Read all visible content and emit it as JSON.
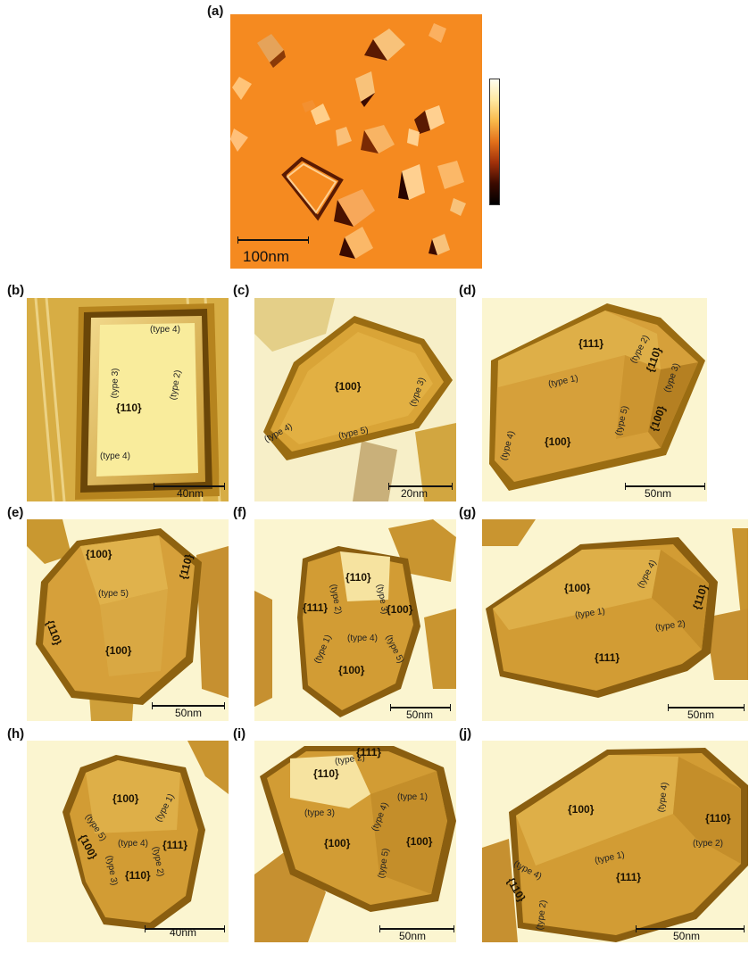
{
  "figure": {
    "colors": {
      "afm_background": "#f58a20",
      "crystal_gold": "#d9a437",
      "crystal_dark": "#8b5f12",
      "substrate_light": "#fbf5d0"
    },
    "panels": [
      {
        "id": "a",
        "letter": "(a)",
        "scale_label": "100nm",
        "labels": [],
        "facets": []
      },
      {
        "id": "b",
        "letter": "(b)",
        "scale_label": "40nm",
        "labels": [
          "(type 4)",
          "(type 3)",
          "(type 2)",
          "(type 4)"
        ],
        "facets": [
          "{110}"
        ]
      },
      {
        "id": "c",
        "letter": "(c)",
        "scale_label": "20nm",
        "labels": [
          "(type 3)",
          "(type 4)",
          "(type 5)"
        ],
        "facets": [
          "{100}"
        ]
      },
      {
        "id": "d",
        "letter": "(d)",
        "scale_label": "50nm",
        "labels": [
          "(type 2)",
          "(type 3)",
          "(type 1)",
          "(type 5)",
          "(type 4)"
        ],
        "facets": [
          "{111}",
          "{110}",
          "{100}",
          "{100}"
        ]
      },
      {
        "id": "e",
        "letter": "(e)",
        "scale_label": "50nm",
        "labels": [
          "(type 5)"
        ],
        "facets": [
          "{100}",
          "{110}",
          "{110}",
          "{100}"
        ]
      },
      {
        "id": "f",
        "letter": "(f)",
        "scale_label": "50nm",
        "labels": [
          "(type 2)",
          "(type 3)",
          "(type 4)",
          "(type 1)",
          "(type 5)"
        ],
        "facets": [
          "{110}",
          "{111}",
          "{100}",
          "{100}"
        ]
      },
      {
        "id": "g",
        "letter": "(g)",
        "scale_label": "50nm",
        "labels": [
          "(type 4)",
          "(type 1)",
          "(type 2)"
        ],
        "facets": [
          "{100}",
          "{110}",
          "{111}"
        ]
      },
      {
        "id": "h",
        "letter": "(h)",
        "scale_label": "40nm",
        "labels": [
          "(type 5)",
          "(type 1)",
          "(type 4)",
          "(type 3)",
          "(type 2)"
        ],
        "facets": [
          "{100}",
          "{100}",
          "{111}",
          "{110}"
        ]
      },
      {
        "id": "i",
        "letter": "(i)",
        "scale_label": "50nm",
        "labels": [
          "(type 2)",
          "(type 1)",
          "(type 3)",
          "(type 4)",
          "(type 5)"
        ],
        "facets": [
          "{111}",
          "{110}",
          "{100}",
          "{100}"
        ]
      },
      {
        "id": "j",
        "letter": "(j)",
        "scale_label": "50nm",
        "labels": [
          "(type 4)",
          "(type 2)",
          "(type 1)",
          "(type 4)",
          "(type 2)"
        ],
        "facets": [
          "{100}",
          "{110}",
          "{111}",
          "{110}"
        ]
      }
    ]
  }
}
